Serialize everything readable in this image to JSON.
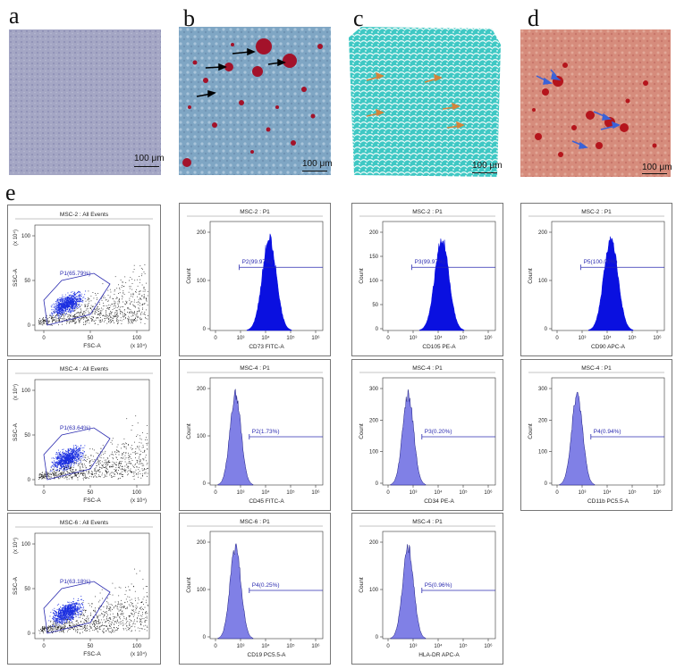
{
  "panel_labels": {
    "a": "a",
    "b": "b",
    "c": "c",
    "d": "d",
    "e": "e"
  },
  "scale_bar": "100 μm",
  "scatter": [
    {
      "title": "MSC-2 : All Events",
      "gate": "P1(65.79%)",
      "xlabel": "FSC-A",
      "ylabel": "SSC-A",
      "xticks": [
        "0",
        "50",
        "100"
      ],
      "yticks": [
        "0",
        "50",
        "100"
      ],
      "xexp": "(x 10⁴)",
      "yexp": "(x 10⁴)"
    },
    {
      "title": "MSC-4 : All Events",
      "gate": "P1(63.64%)",
      "xlabel": "FSC-A",
      "ylabel": "SSC-A",
      "xticks": [
        "0",
        "50",
        "100"
      ],
      "yticks": [
        "0",
        "50",
        "100"
      ],
      "xexp": "(x 10⁴)",
      "yexp": "(x 10⁴)"
    },
    {
      "title": "MSC-6 : All Events",
      "gate": "P1(63.18%)",
      "xlabel": "FSC-A",
      "ylabel": "SSC-A",
      "xticks": [
        "0",
        "50",
        "100"
      ],
      "yticks": [
        "0",
        "50",
        "100"
      ],
      "xexp": "(x 10⁴)",
      "yexp": "(x 10⁴)"
    }
  ],
  "histograms": [
    {
      "title": "MSC-2 : P1",
      "gate": "P2(99.97%)",
      "xlabel": "CD73 FITC-A",
      "ylabel": "Count",
      "yticks": [
        "0",
        "100",
        "200"
      ],
      "fill": "#0a10e0",
      "positive": true
    },
    {
      "title": "MSC-2 : P1",
      "gate": "P3(99.97%)",
      "xlabel": "CD105 PE-A",
      "ylabel": "Count",
      "yticks": [
        "0",
        "50",
        "100",
        "150",
        "200"
      ],
      "fill": "#0a10e0",
      "positive": true
    },
    {
      "title": "MSC-2 : P1",
      "gate": "P5(100.00%)",
      "xlabel": "CD90 APC-A",
      "ylabel": "Count",
      "yticks": [
        "0",
        "100",
        "200"
      ],
      "fill": "#0a10e0",
      "positive": true
    },
    {
      "title": "MSC-4 : P1",
      "gate": "P2(1.73%)",
      "xlabel": "CD45 FITC-A",
      "ylabel": "Count",
      "yticks": [
        "0",
        "100",
        "200"
      ],
      "fill": "#8080e6",
      "positive": false
    },
    {
      "title": "MSC-4 : P1",
      "gate": "P3(0.20%)",
      "xlabel": "CD34 PE-A",
      "ylabel": "Count",
      "yticks": [
        "0",
        "100",
        "200",
        "300"
      ],
      "fill": "#8080e6",
      "positive": false
    },
    {
      "title": "MSC-4 : P1",
      "gate": "P4(0.94%)",
      "xlabel": "CD11b PC5.5-A",
      "ylabel": "Count",
      "yticks": [
        "0",
        "100",
        "200",
        "300"
      ],
      "fill": "#8080e6",
      "positive": false
    },
    {
      "title": "MSC-6 : P1",
      "gate": "P4(0.25%)",
      "xlabel": "CD19 PC5.5-A",
      "ylabel": "Count",
      "yticks": [
        "0",
        "100",
        "200"
      ],
      "fill": "#8080e6",
      "positive": false
    },
    {
      "title": "MSC-4 : P1",
      "gate": "P5(0.96%)",
      "xlabel": "HLA-DR APC-A",
      "ylabel": "Count",
      "yticks": [
        "0",
        "100",
        "200"
      ],
      "fill": "#8080e6",
      "positive": false
    }
  ],
  "hist_xticks": [
    "0",
    "10³",
    "10⁴",
    "10⁵",
    "10⁶"
  ],
  "colors": {
    "positive": "#0a10e0",
    "negative": "#8080e6",
    "gate_text": "#2b2bb0",
    "scatter_blue": "#1a2ee0"
  }
}
